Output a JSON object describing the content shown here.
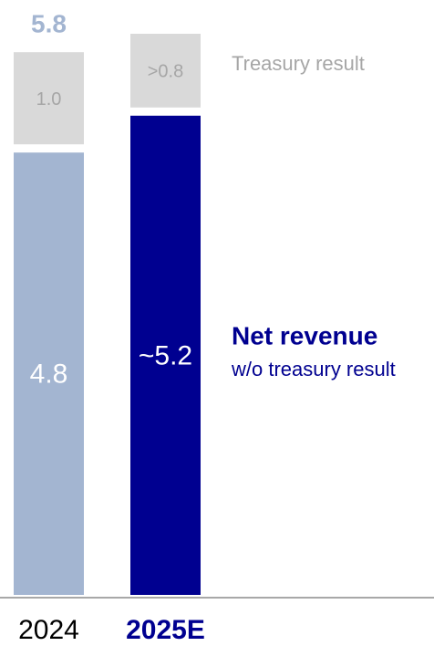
{
  "chart_data": {
    "type": "stacked-bar",
    "categories": [
      "2024",
      "2025E"
    ],
    "series": [
      {
        "name": "Net revenue",
        "subtitle": "w/o treasury result",
        "color": "#000090",
        "colors": [
          "#a3b5d1",
          "#000090"
        ],
        "values": [
          4.8,
          5.2
        ],
        "value_labels": [
          "4.8",
          "~5.2"
        ]
      },
      {
        "name": "Treasury result",
        "color": "#d9d9d9",
        "colors": [
          "#d9d9d9",
          "#d9d9d9"
        ],
        "values": [
          1.0,
          0.8
        ],
        "value_labels": [
          "1.0",
          ">0.8"
        ]
      }
    ],
    "totals": [
      5.8,
      null
    ],
    "total_color": "#a3b5d1"
  }
}
